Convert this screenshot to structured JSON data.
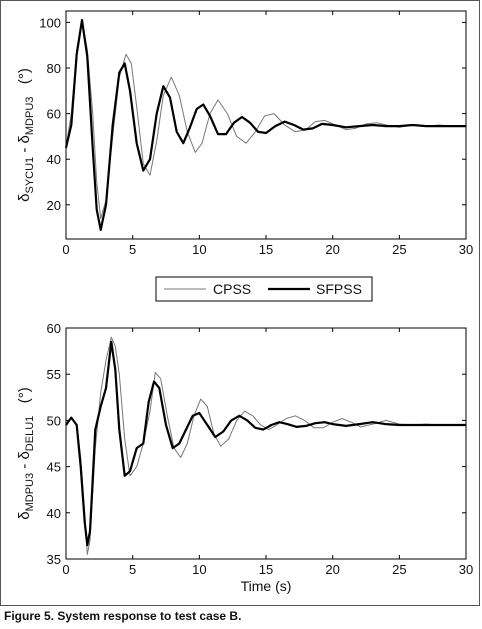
{
  "caption": "Figure 5. System response to test case B.",
  "chart_data": [
    {
      "type": "line",
      "ylabel": {
        "delta": "δ",
        "sub1": "SYCU1",
        "minus": " - ",
        "sub2": "MDPU3",
        "unit": "(°)"
      },
      "xlim": [
        0,
        30
      ],
      "ylim": [
        5,
        105
      ],
      "xticks": [
        0,
        5,
        10,
        15,
        20,
        25,
        30
      ],
      "yticks": [
        20,
        40,
        60,
        80,
        100
      ],
      "series": [
        {
          "name": "CPSS",
          "color": "#777777",
          "width": 1,
          "x": [
            0,
            0.4,
            0.8,
            1.2,
            1.6,
            2.0,
            2.3,
            2.6,
            3.0,
            3.5,
            4.0,
            4.5,
            4.9,
            5.3,
            5.8,
            6.3,
            6.8,
            7.3,
            7.9,
            8.5,
            9.1,
            9.7,
            10.2,
            10.8,
            11.4,
            12.1,
            12.8,
            13.5,
            14.2,
            14.9,
            15.6,
            16.4,
            17.2,
            18.0,
            18.7,
            19.4,
            20.2,
            21.0,
            21.7,
            22.5,
            23.3,
            24.0,
            25.0,
            26.0,
            27.0,
            28.0,
            29.0,
            30.0
          ],
          "y": [
            45,
            60,
            88,
            101,
            88,
            60,
            30,
            14,
            22,
            50,
            76,
            86,
            82,
            63,
            38,
            33,
            48,
            68,
            76,
            68,
            52,
            43,
            47,
            60,
            66,
            60,
            50,
            47,
            52,
            59,
            60,
            55,
            52,
            53,
            56.5,
            57,
            55,
            53,
            53.5,
            55.5,
            56,
            55,
            54,
            55,
            54.5,
            55,
            54.5,
            54.5
          ]
        },
        {
          "name": "SFPSS",
          "color": "#000000",
          "width": 2.2,
          "x": [
            0,
            0.4,
            0.8,
            1.2,
            1.6,
            2.0,
            2.3,
            2.6,
            3.0,
            3.5,
            4.0,
            4.4,
            4.8,
            5.3,
            5.8,
            6.3,
            6.8,
            7.3,
            7.8,
            8.3,
            8.8,
            9.3,
            9.8,
            10.3,
            10.8,
            11.4,
            12.0,
            12.6,
            13.2,
            13.8,
            14.4,
            15.0,
            15.7,
            16.4,
            17.1,
            17.8,
            18.5,
            19.2,
            20.0,
            21.0,
            22.0,
            23.0,
            24.0,
            25.0,
            26.0,
            27.0,
            28.0,
            29.0,
            30.0
          ],
          "y": [
            45,
            55,
            86,
            101,
            85,
            45,
            18,
            9,
            20,
            55,
            78,
            82,
            70,
            47,
            35,
            40,
            60,
            72,
            67,
            52,
            47,
            54,
            62,
            64,
            59,
            51,
            51,
            56,
            58.5,
            56,
            52,
            51.5,
            54.5,
            56.5,
            55,
            53,
            53.5,
            55.5,
            55,
            54,
            54.5,
            55,
            54.5,
            54.5,
            55,
            54.5,
            54.5,
            54.5,
            54.5
          ]
        }
      ]
    },
    {
      "type": "line",
      "ylabel": {
        "delta": "δ",
        "sub1": "MDPU3",
        "minus": " - ",
        "sub2": "DELU1",
        "unit": "(°)"
      },
      "xlabel": "Time (s)",
      "xlim": [
        0,
        30
      ],
      "ylim": [
        35,
        60
      ],
      "xticks": [
        0,
        5,
        10,
        15,
        20,
        25,
        30
      ],
      "yticks": [
        35,
        40,
        45,
        50,
        55,
        60
      ],
      "series": [
        {
          "name": "CPSS",
          "color": "#777777",
          "width": 1,
          "x": [
            0,
            0.4,
            0.8,
            1.1,
            1.4,
            1.6,
            1.8,
            2.2,
            2.6,
            3.0,
            3.4,
            3.7,
            4.0,
            4.4,
            4.8,
            5.3,
            5.8,
            6.3,
            6.7,
            7.1,
            7.6,
            8.1,
            8.6,
            9.1,
            9.6,
            10.1,
            10.6,
            11.1,
            11.6,
            12.2,
            12.8,
            13.4,
            14.0,
            14.6,
            15.2,
            15.8,
            16.5,
            17.2,
            17.9,
            18.6,
            19.3,
            20.0,
            20.7,
            21.4,
            22.1,
            23.0,
            24.0,
            25.0,
            26.0,
            27.0,
            28.0,
            29.0,
            30.0
          ],
          "y": [
            49.5,
            50.3,
            49.5,
            46,
            40,
            35.5,
            37,
            47,
            53,
            56.5,
            59,
            58,
            55,
            48,
            44,
            45,
            47.5,
            51,
            55.2,
            54.5,
            50.5,
            47,
            46,
            47.5,
            50.5,
            52.3,
            51.5,
            48.5,
            47.2,
            48,
            50,
            51,
            50.5,
            49.5,
            49,
            49.5,
            50.2,
            50.5,
            50,
            49.2,
            49.2,
            49.8,
            50.2,
            49.8,
            49.3,
            49.6,
            50,
            49.6,
            49.5,
            49.6,
            49.5,
            49.5,
            49.5
          ]
        },
        {
          "name": "SFPSS",
          "color": "#000000",
          "width": 2.2,
          "x": [
            0,
            0.4,
            0.8,
            1.1,
            1.4,
            1.6,
            1.8,
            2.2,
            2.6,
            3.0,
            3.4,
            3.7,
            4.0,
            4.4,
            4.8,
            5.3,
            5.8,
            6.2,
            6.6,
            7.0,
            7.5,
            8.0,
            8.5,
            9.0,
            9.5,
            10.0,
            10.6,
            11.2,
            11.8,
            12.4,
            13.0,
            13.6,
            14.2,
            14.8,
            15.4,
            16.0,
            16.6,
            17.3,
            18.0,
            18.7,
            19.4,
            20.0,
            21.0,
            22.0,
            23.0,
            24.0,
            25.0,
            26.0,
            27.0,
            28.0,
            29.0,
            30.0
          ],
          "y": [
            49.5,
            50.3,
            49.5,
            45,
            39,
            36.5,
            38,
            49,
            51.5,
            53.5,
            58.5,
            55.5,
            49,
            44,
            44.5,
            47,
            47.5,
            52,
            54.2,
            53.5,
            49.5,
            47,
            47.5,
            49,
            50.5,
            50.8,
            49.5,
            48.2,
            48.8,
            50,
            50.5,
            50,
            49.2,
            49,
            49.5,
            49.8,
            49.6,
            49.3,
            49.4,
            49.7,
            49.8,
            49.6,
            49.4,
            49.6,
            49.8,
            49.6,
            49.5,
            49.5,
            49.5,
            49.5,
            49.5,
            49.5
          ]
        }
      ]
    }
  ]
}
